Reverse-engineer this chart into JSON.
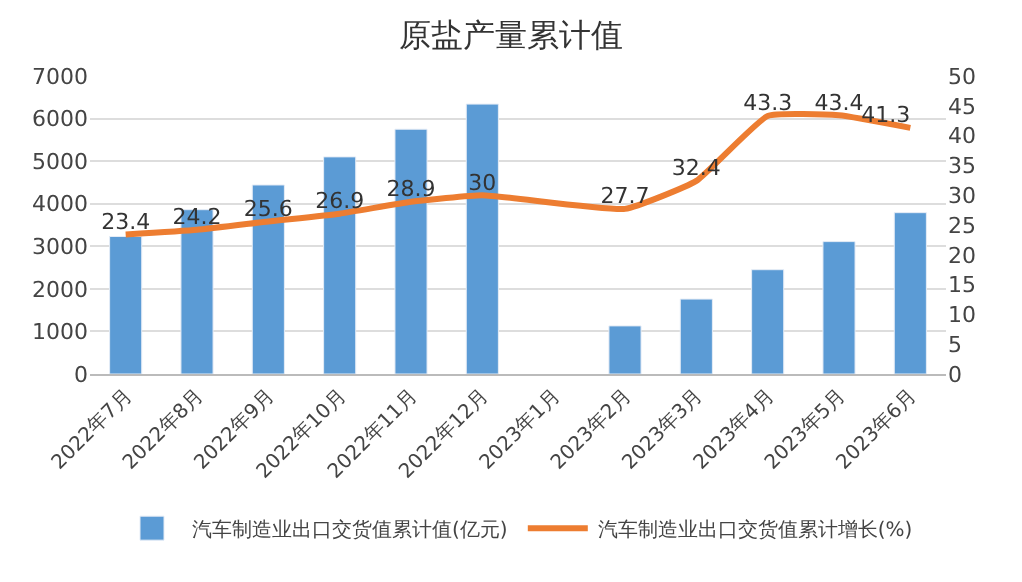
{
  "chart_data": {
    "type": "bar",
    "title": "原盐产量累计值",
    "categories": [
      "2022年7月",
      "2022年8月",
      "2022年9月",
      "2022年10月",
      "2022年11月",
      "2022年12月",
      "2023年1月",
      "2023年2月",
      "2023年3月",
      "2023年4月",
      "2023年5月",
      "2023年6月"
    ],
    "series": [
      {
        "name": "汽车制造业出口交货值累计值(亿元)",
        "color": "#5b9bd5",
        "values": [
          3230,
          3860,
          4440,
          5100,
          5750,
          6340,
          null,
          1130,
          1760,
          2450,
          3110,
          3790
        ]
      },
      {
        "name": "汽车制造业出口交货值累计增长(%)",
        "color": "#ed7d31",
        "type": "line",
        "axis": "y2",
        "data_labels": true,
        "values": [
          23.4,
          24.2,
          25.6,
          26.9,
          28.9,
          30,
          null,
          27.7,
          32.4,
          43.3,
          43.4,
          41.3
        ]
      }
    ],
    "ylim": [
      0,
      7000
    ],
    "yticks": [
      0,
      1000,
      2000,
      3000,
      4000,
      5000,
      6000,
      7000
    ],
    "y2lim": [
      0,
      50
    ],
    "y2ticks": [
      0,
      5,
      10,
      15,
      20,
      25,
      30,
      35,
      40,
      45,
      50
    ],
    "grid": "y",
    "legend": "bottom",
    "marker": "none"
  }
}
